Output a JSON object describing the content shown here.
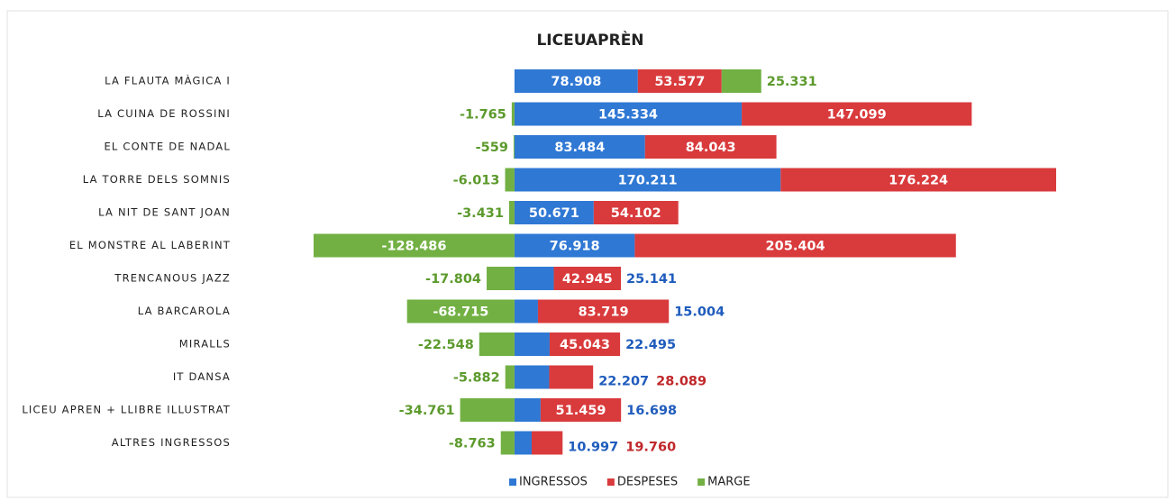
{
  "chart_data": {
    "type": "bar",
    "orientation": "horizontal",
    "title": "LICEUAPRÈN",
    "categories": [
      "LA FLAUTA MÀGICA I",
      "LA CUINA DE ROSSINI",
      "EL CONTE DE NADAL",
      "LA TORRE DELS SOMNIS",
      "LA NIT DE SANT JOAN",
      "EL MONSTRE AL LABERINT",
      "TRENCANOUS JAZZ",
      "LA BARCAROLA",
      "MIRALLS",
      "IT DANSA",
      "LICEU APREN + LLIBRE ILLUSTRAT",
      "ALTRES INGRESSOS"
    ],
    "series": [
      {
        "name": "INGRESSOS",
        "color": "#2f78d4",
        "label_color": "#1f5cbc",
        "values": [
          78908,
          145334,
          83484,
          170211,
          50671,
          76918,
          25141,
          15004,
          22495,
          22207,
          16698,
          10997
        ],
        "value_labels": [
          "78.908",
          "145.334",
          "83.484",
          "170.211",
          "50.671",
          "76.918",
          "25.141",
          "15.004",
          "22.495",
          "22.207",
          "16.698",
          "10.997"
        ]
      },
      {
        "name": "DESPESES",
        "color": "#d93a3c",
        "label_color": "#c0282b",
        "values": [
          53577,
          147099,
          84043,
          176224,
          54102,
          205404,
          42945,
          83719,
          45043,
          28089,
          51459,
          19760
        ],
        "value_labels": [
          "53.577",
          "147.099",
          "84.043",
          "176.224",
          "54.102",
          "205.404",
          "42.945",
          "83.719",
          "45.043",
          "28.089",
          "51.459",
          "19.760"
        ]
      },
      {
        "name": "MARGE",
        "color": "#72b043",
        "label_color": "#5c9a2c",
        "values": [
          25331,
          -1765,
          -559,
          -6013,
          -3431,
          -128486,
          -17804,
          -68715,
          -22548,
          -5882,
          -34761,
          -8763
        ],
        "value_labels": [
          "25.331",
          "-1.765",
          "-559",
          "-6.013",
          "-3.431",
          "-128.486",
          "-17.804",
          "-68.715",
          "-22.548",
          "-5.882",
          "-34.761",
          "-8.763"
        ]
      }
    ],
    "legend": "bottom"
  }
}
